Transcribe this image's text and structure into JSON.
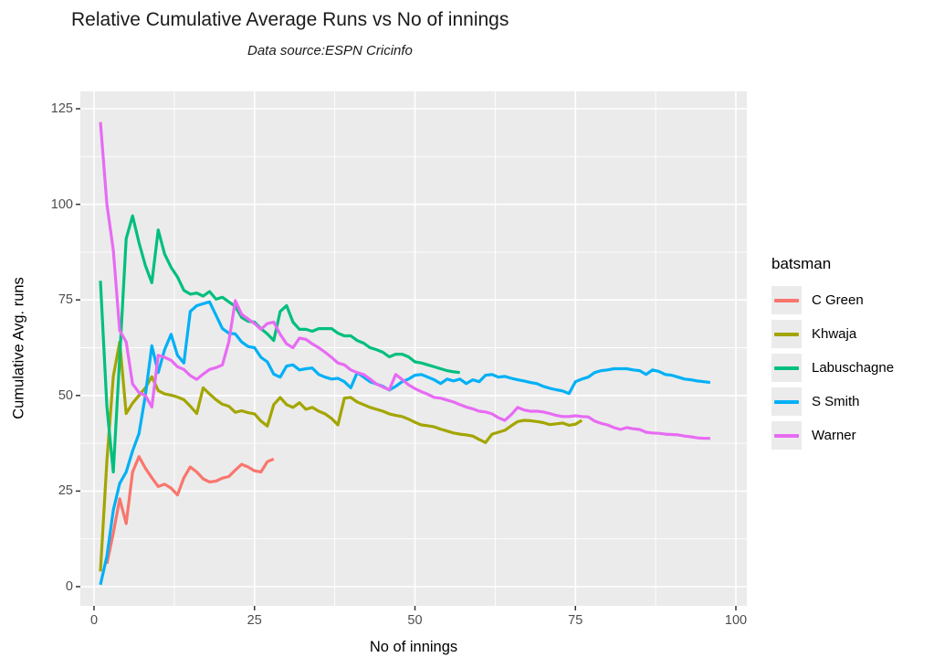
{
  "title": "Relative Cumulative Average Runs vs No of innings",
  "subtitle": "Data source:ESPN Cricinfo",
  "chart_data": {
    "type": "line",
    "title": "Relative Cumulative Average Runs vs No of innings",
    "subtitle": "Data source:ESPN Cricinfo",
    "xlabel": "No of innings",
    "ylabel": "Cumulative Avg. runs",
    "xlim": [
      0,
      100
    ],
    "ylim": [
      0,
      125
    ],
    "x_ticks": [
      0,
      25,
      50,
      75,
      100
    ],
    "y_ticks": [
      0,
      25,
      50,
      75,
      100,
      125
    ],
    "grid": true,
    "legend_position": "right",
    "legend_title": "batsman",
    "panel_bg": "#EBEBEB",
    "grid_color": "#FFFFFF",
    "tick_color": "#333333",
    "series": [
      {
        "name": "C Green",
        "color": "#F8766D",
        "start_inning": 2,
        "values": [
          6,
          14,
          23,
          16.5,
          30,
          34,
          31,
          28.5,
          26.2,
          26.8,
          25.8,
          24,
          28.5,
          31.3,
          30,
          28.2,
          27.4,
          27.6,
          28.4,
          28.8,
          30.5,
          32,
          31.3,
          30.3,
          30,
          32.7,
          33.4
        ]
      },
      {
        "name": "Khwaja",
        "color": "#A3A500",
        "start_inning": 1,
        "values": [
          4,
          33,
          55,
          64,
          45.3,
          48,
          50,
          52,
          54.9,
          51.3,
          50.4,
          50.1,
          49.6,
          48.9,
          47.2,
          45.3,
          52,
          50.4,
          48.9,
          47.7,
          47.2,
          45.6,
          46,
          45.5,
          45.2,
          43.3,
          42,
          47.6,
          49.5,
          47.6,
          46.9,
          48.1,
          46.4,
          46.9,
          45.9,
          45.2,
          44,
          42.3,
          49.3,
          49.5,
          48.3,
          47.6,
          46.9,
          46.4,
          45.9,
          45.2,
          44.8,
          44.5,
          43.8,
          43,
          42.3,
          42.1,
          41.8,
          41.2,
          40.7,
          40.2,
          39.9,
          39.7,
          39.4,
          38.5,
          37.7,
          39.9,
          40.4,
          40.9,
          42.1,
          43.2,
          43.5,
          43.4,
          43.2,
          42.9,
          42.4,
          42.6,
          42.8,
          42.2,
          42.5,
          43.5
        ]
      },
      {
        "name": "Labuschagne",
        "color": "#00BF7D",
        "start_inning": 1,
        "values": [
          80,
          47,
          30,
          60,
          91,
          97,
          90,
          84,
          79.5,
          93.3,
          87,
          83.5,
          81,
          77.5,
          76.5,
          76.8,
          76,
          77.2,
          75.2,
          75.7,
          74.5,
          73.3,
          70.4,
          69.4,
          69.2,
          67.5,
          66.1,
          64.4,
          72,
          73.5,
          69.2,
          67.3,
          67.3,
          66.8,
          67.5,
          67.5,
          67.5,
          66.3,
          65.6,
          65.6,
          64.4,
          63.7,
          62.5,
          62,
          61.3,
          60.1,
          60.8,
          60.8,
          60.1,
          58.8,
          58.5,
          58,
          57.5,
          57,
          56.5,
          56.2,
          56
        ]
      },
      {
        "name": "S Smith",
        "color": "#00B0F6",
        "start_inning": 1,
        "values": [
          0.5,
          8,
          20,
          27,
          30,
          35.5,
          40,
          50,
          63,
          56,
          62,
          66,
          60.5,
          58.5,
          72,
          73.5,
          74,
          74.5,
          71,
          67.5,
          66.3,
          66.1,
          64,
          62.8,
          62.5,
          60,
          58.8,
          55.6,
          54.8,
          57.7,
          58,
          56.7,
          57,
          57.2,
          55.5,
          54.8,
          54.3,
          54.5,
          53.6,
          52,
          56,
          54.8,
          53.6,
          53,
          52.4,
          51.4,
          52.4,
          53.6,
          54.3,
          55.3,
          55.5,
          54.8,
          54.1,
          53.1,
          54.3,
          53.8,
          54.3,
          53.1,
          54.1,
          53.6,
          55.3,
          55.5,
          54.8,
          55,
          54.5,
          54.1,
          53.8,
          53.4,
          53.1,
          52.4,
          51.9,
          51.5,
          51.2,
          50.5,
          53.6,
          54.3,
          54.8,
          56,
          56.5,
          56.7,
          57,
          57,
          57,
          56.7,
          56.5,
          55.5,
          56.7,
          56.3,
          55.5,
          55.3,
          54.8,
          54.3,
          54.1,
          53.8,
          53.6,
          53.4
        ]
      },
      {
        "name": "Warner",
        "color": "#E76BF3",
        "start_inning": 1,
        "values": [
          121.5,
          100,
          88,
          67,
          64,
          53,
          50.8,
          50,
          47,
          60.5,
          60,
          59.2,
          57.5,
          56.8,
          55.2,
          54.2,
          55.6,
          56.8,
          57.3,
          58,
          64,
          74.8,
          71.2,
          70,
          68.8,
          67.3,
          68.8,
          69.2,
          66,
          63.5,
          62.5,
          65,
          64.7,
          63.5,
          62.5,
          61.3,
          60,
          58.5,
          58,
          56.7,
          56,
          55.5,
          54.3,
          53,
          52.2,
          51.5,
          55.5,
          54.2,
          52.8,
          51.8,
          51,
          50.3,
          49.5,
          49.3,
          48.8,
          48.3,
          47.6,
          47,
          46.5,
          45.9,
          45.7,
          45.2,
          44.2,
          43.5,
          45,
          46.9,
          46.2,
          45.9,
          45.9,
          45.7,
          45.3,
          44.8,
          44.5,
          44.5,
          44.7,
          44.5,
          44.4,
          43.3,
          42.7,
          42.3,
          41.6,
          41.1,
          41.6,
          41.3,
          41.1,
          40.4,
          40.2,
          40.1,
          39.9,
          39.8,
          39.7,
          39.4,
          39.2,
          38.9,
          38.8,
          38.8
        ]
      }
    ]
  }
}
